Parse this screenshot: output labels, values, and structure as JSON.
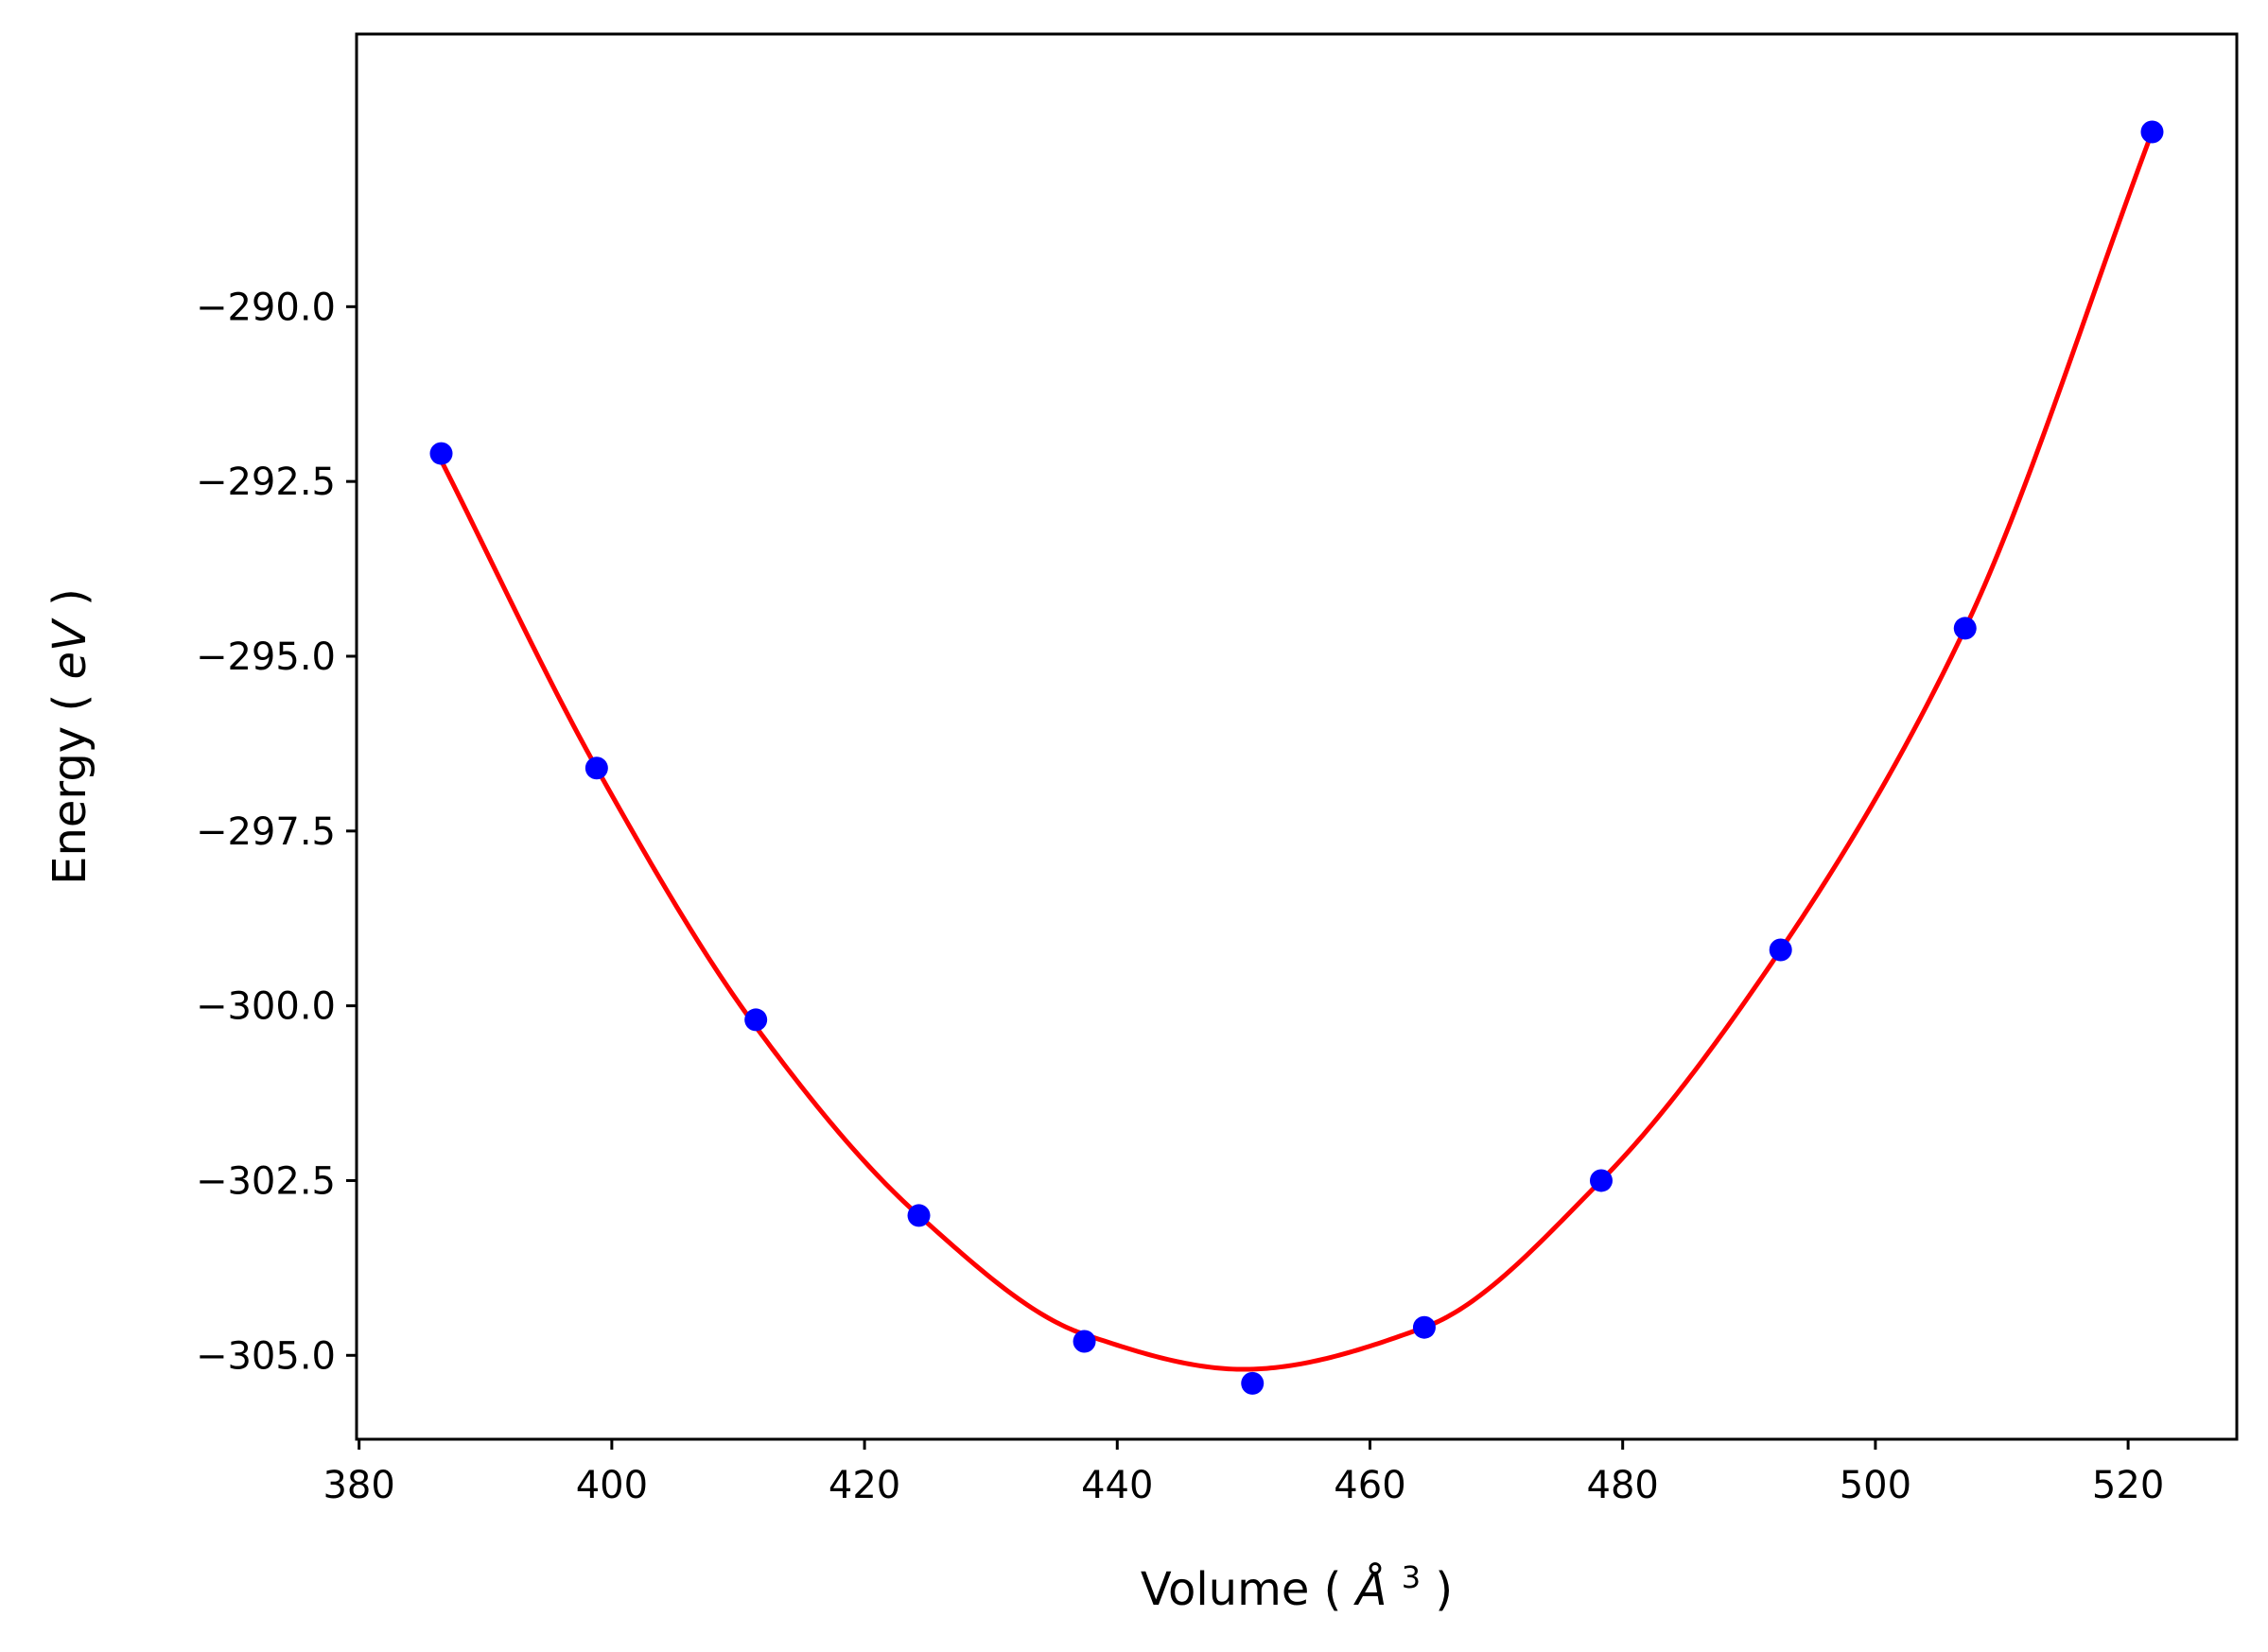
{
  "chart_data": {
    "type": "scatter",
    "xlabel": "Volume",
    "xlabel_unit": "Å",
    "xlabel_exp": "3",
    "ylabel": "Energy",
    "ylabel_unit": "eV",
    "xlim": [
      379.8,
      528.6
    ],
    "ylim": [
      -306.2,
      -286.1
    ],
    "x_ticks": [
      380,
      400,
      420,
      440,
      460,
      480,
      500,
      520
    ],
    "y_ticks": [
      -290.0,
      -292.5,
      -295.0,
      -297.5,
      -300.0,
      -302.5,
      -305.0
    ],
    "grid": false,
    "legend": "none",
    "series": [
      {
        "kind": "points",
        "color": "#0000ff",
        "x": [
          386.5,
          398.8,
          411.4,
          424.3,
          437.4,
          450.7,
          464.3,
          478.3,
          492.5,
          507.1,
          521.9
        ],
        "y": [
          -292.1,
          -296.6,
          -300.2,
          -303.0,
          -304.8,
          -305.4,
          -304.6,
          -302.5,
          -299.2,
          -294.6,
          -287.5
        ]
      },
      {
        "kind": "fit-curve",
        "color": "#ff0000",
        "x_range": [
          386.5,
          521.9
        ],
        "vertex_x": 450.0,
        "vertex_y": -305.2,
        "x": [
          386.5,
          398.8,
          411.4,
          424.3,
          437.4,
          450.0,
          464.3,
          478.3,
          492.5,
          507.1,
          521.9
        ],
        "y": [
          -292.2,
          -296.6,
          -300.3,
          -303.0,
          -304.7,
          -305.2,
          -304.6,
          -302.5,
          -299.2,
          -294.6,
          -287.5
        ]
      }
    ]
  }
}
